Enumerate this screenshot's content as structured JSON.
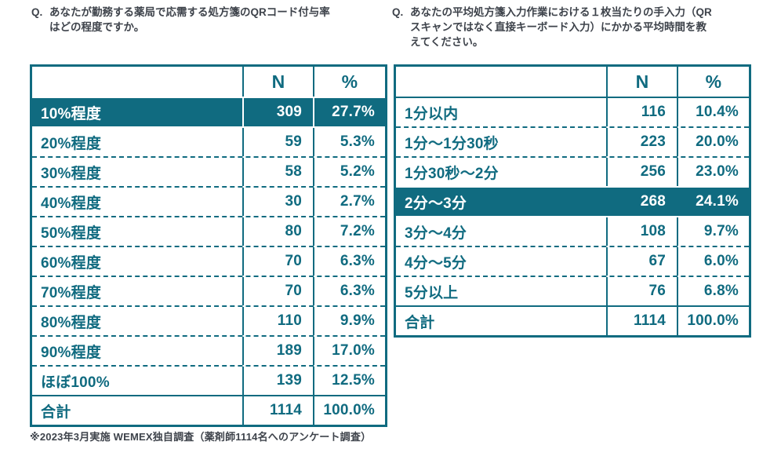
{
  "colors": {
    "teal": "#106b80",
    "question_text": "#3e434b",
    "highlight_text": "#ffffff",
    "background": "#ffffff"
  },
  "questions": {
    "prefix": "Q.",
    "left": "あなたが勤務する薬局で応需する処方箋のQRコード付与率\nはどの程度ですか。",
    "right": "あなたの平均処方箋入力作業における１枚当たりの手入力（QR\nスキャンではなく直接キーボード入力）にかかる平均時間を教\nえてください。"
  },
  "chart_data": [
    {
      "type": "table",
      "title": "Q. あなたが勤務する薬局で応需する処方箋のQRコード付与率はどの程度ですか。",
      "columns": [
        "",
        "N",
        "%"
      ],
      "highlighted_row": "10%程度",
      "rows": [
        {
          "label": "10%程度",
          "n": "309",
          "pct": "27.7%",
          "highlight": true
        },
        {
          "label": "20%程度",
          "n": "59",
          "pct": "5.3%"
        },
        {
          "label": "30%程度",
          "n": "58",
          "pct": "5.2%"
        },
        {
          "label": "40%程度",
          "n": "30",
          "pct": "2.7%"
        },
        {
          "label": "50%程度",
          "n": "80",
          "pct": "7.2%"
        },
        {
          "label": "60%程度",
          "n": "70",
          "pct": "6.3%"
        },
        {
          "label": "70%程度",
          "n": "70",
          "pct": "6.3%"
        },
        {
          "label": "80%程度",
          "n": "110",
          "pct": "9.9%"
        },
        {
          "label": "90%程度",
          "n": "189",
          "pct": "17.0%"
        },
        {
          "label": "ほぼ100%",
          "n": "139",
          "pct": "12.5%"
        },
        {
          "label": "合計",
          "n": "1114",
          "pct": "100.0%",
          "total": true
        }
      ]
    },
    {
      "type": "table",
      "title": "Q. あなたの平均処方箋入力作業における１枚当たりの手入力（QRスキャンではなく直接キーボード入力）にかかる平均時間を教えてください。",
      "columns": [
        "",
        "N",
        "%"
      ],
      "highlighted_row": "2分～3分",
      "rows": [
        {
          "label": "1分以内",
          "n": "116",
          "pct": "10.4%"
        },
        {
          "label": "1分～1分30秒",
          "n": "223",
          "pct": "20.0%"
        },
        {
          "label": "1分30秒～2分",
          "n": "256",
          "pct": "23.0%"
        },
        {
          "label": "2分～3分",
          "n": "268",
          "pct": "24.1%",
          "highlight": true
        },
        {
          "label": "3分～4分",
          "n": "108",
          "pct": "9.7%"
        },
        {
          "label": "4分～5分",
          "n": "67",
          "pct": "6.0%"
        },
        {
          "label": "5分以上",
          "n": "76",
          "pct": "6.8%"
        },
        {
          "label": "合計",
          "n": "1114",
          "pct": "100.0%",
          "total": true
        }
      ]
    }
  ],
  "footnote": "※2023年3月実施 WEMEX独自調査（薬剤師1114名へのアンケート調査）"
}
